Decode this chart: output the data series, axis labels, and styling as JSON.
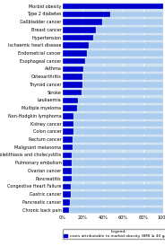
{
  "categories": [
    "Morbid obesity",
    "Type 2 diabetes",
    "Gallbladder cancer",
    "Breast cancer",
    "Hypertension",
    "Ischaemic heart disease",
    "Endometrial cancer",
    "Esophageal cancer",
    "Asthma",
    "Osteoarthritis",
    "Thyroid cancer",
    "Stroke",
    "Leukaemia",
    "Multiple myeloma",
    "Non-Hodgkin lymphoma",
    "Kidney cancer",
    "Colon cancer",
    "Rectum cancer",
    "Malignant melanoma",
    "Cholelithiasis and cholecystitis",
    "Pulmonary embolism",
    "Ovarian cancer",
    "Pancreatitis",
    "Congestive Heart Failure",
    "Gastric cancer",
    "Pancreatic cancer",
    "Chronic back pain"
  ],
  "dark_blue_values": [
    100,
    47,
    39,
    33,
    30,
    26,
    24,
    22,
    21,
    20,
    20,
    19,
    15,
    14,
    11,
    11,
    11,
    10,
    10,
    9,
    9,
    9,
    9,
    8,
    8,
    7,
    6
  ],
  "light_blue_values": [
    0,
    53,
    61,
    67,
    70,
    74,
    76,
    78,
    79,
    80,
    80,
    81,
    85,
    86,
    89,
    89,
    89,
    90,
    90,
    91,
    91,
    91,
    91,
    92,
    92,
    93,
    94
  ],
  "dark_blue_color": "#0000cc",
  "light_blue_color": "#aaccee",
  "bar_height": 0.75,
  "xlim": [
    0,
    100
  ],
  "xticks": [
    0,
    20,
    40,
    60,
    80,
    100
  ],
  "xticklabels": [
    "0%",
    "20%",
    "40%",
    "60%",
    "80%",
    "100%"
  ],
  "legend_label": "costs attributable to morbid obesity (BMI ≥ 40 g/m²)",
  "legend_fontsize": 3.2,
  "ylabel_fontsize": 3.5,
  "xlabel_fontsize": 3.5,
  "grid_color": "#ffffff",
  "background_color": "#cce0f0"
}
